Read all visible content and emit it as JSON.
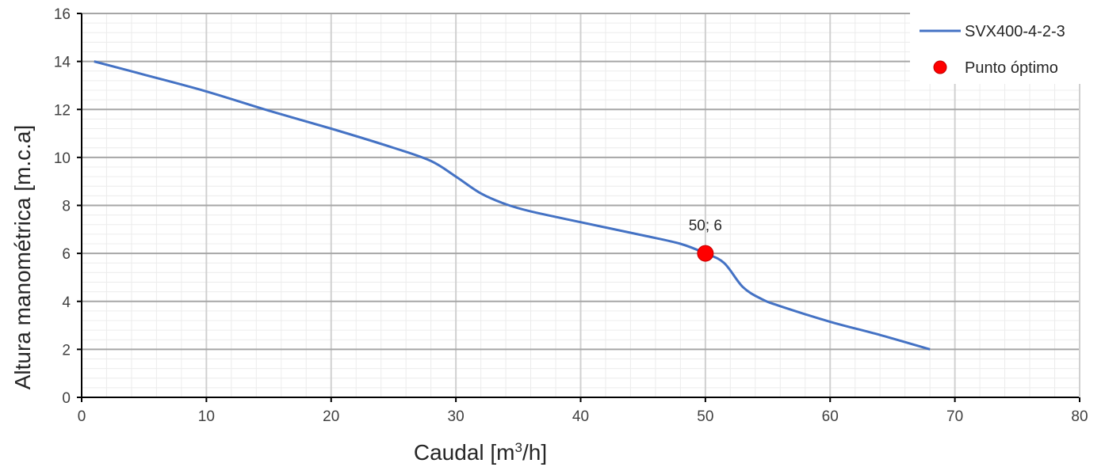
{
  "chart_data": {
    "type": "line",
    "title": "",
    "xlabel": "Caudal [m",
    "xlabel_sup": "3",
    "xlabel_end": "/h]",
    "ylabel": "Altura manométrica [m.c.a]",
    "xlim": [
      0,
      80
    ],
    "ylim": [
      0,
      16
    ],
    "x_ticks": [
      "0",
      "10",
      "20",
      "30",
      "40",
      "50",
      "60",
      "70",
      "80"
    ],
    "y_ticks": [
      "0",
      "2",
      "4",
      "6",
      "8",
      "10",
      "12",
      "14",
      "16"
    ],
    "grid": true,
    "legend_position": "top-right",
    "series": [
      {
        "name": "SVX400-4-2-3",
        "color": "#4472C4",
        "points": [
          [
            1,
            14.0
          ],
          [
            5,
            13.45
          ],
          [
            10,
            12.75
          ],
          [
            15,
            11.95
          ],
          [
            20,
            11.2
          ],
          [
            25,
            10.4
          ],
          [
            28,
            9.85
          ],
          [
            30,
            9.2
          ],
          [
            32,
            8.5
          ],
          [
            34,
            8.05
          ],
          [
            36,
            7.75
          ],
          [
            40,
            7.3
          ],
          [
            45,
            6.75
          ],
          [
            48,
            6.4
          ],
          [
            50,
            6.0
          ],
          [
            51.5,
            5.6
          ],
          [
            53,
            4.6
          ],
          [
            54.5,
            4.1
          ],
          [
            56,
            3.8
          ],
          [
            60,
            3.15
          ],
          [
            64,
            2.6
          ],
          [
            68,
            2.0
          ]
        ]
      }
    ],
    "markers": [
      {
        "name": "Punto óptimo",
        "color": "#FF0000",
        "x": 50,
        "y": 6,
        "label": "50; 6"
      }
    ]
  }
}
